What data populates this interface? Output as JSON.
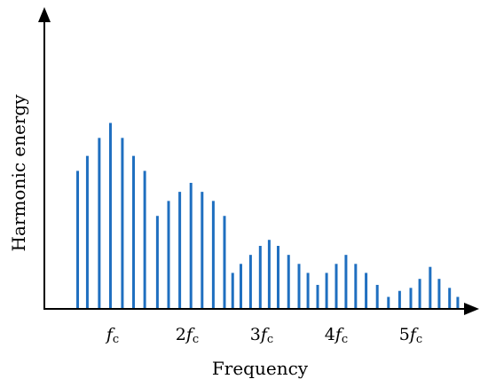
{
  "chart_data": {
    "type": "bar",
    "title": "",
    "xlabel": "Frequency",
    "ylabel": "Harmonic energy",
    "grid": false,
    "legend": "none",
    "xlim": [
      0,
      5.7
    ],
    "ylim": [
      0,
      1.0
    ],
    "x_ticks": [
      {
        "value": 1,
        "coef": "",
        "label": "f",
        "sub": "c"
      },
      {
        "value": 2,
        "coef": "2",
        "label": "f",
        "sub": "c"
      },
      {
        "value": 3,
        "coef": "3",
        "label": "f",
        "sub": "c"
      },
      {
        "value": 4,
        "coef": "4",
        "label": "f",
        "sub": "c"
      },
      {
        "value": 5,
        "coef": "5",
        "label": "f",
        "sub": "c"
      }
    ],
    "bar_color": "#1f6fc0",
    "axis_color": "#000000",
    "series": [
      {
        "x": [
          0.53,
          0.66,
          0.82,
          0.97,
          1.13,
          1.28,
          1.43,
          1.6,
          1.75,
          1.9,
          2.05,
          2.2,
          2.35,
          2.5,
          2.61,
          2.72,
          2.85,
          2.98,
          3.1,
          3.22,
          3.36,
          3.5,
          3.62,
          3.75,
          3.87,
          4.0,
          4.13,
          4.26,
          4.4,
          4.55,
          4.7,
          4.85,
          5.0,
          5.12,
          5.26,
          5.38,
          5.52,
          5.63
        ],
        "values": [
          0.46,
          0.51,
          0.57,
          0.62,
          0.57,
          0.51,
          0.46,
          0.31,
          0.36,
          0.39,
          0.42,
          0.39,
          0.36,
          0.31,
          0.12,
          0.15,
          0.18,
          0.21,
          0.23,
          0.21,
          0.18,
          0.15,
          0.12,
          0.08,
          0.12,
          0.15,
          0.18,
          0.15,
          0.12,
          0.08,
          0.04,
          0.06,
          0.07,
          0.1,
          0.14,
          0.1,
          0.07,
          0.04
        ]
      }
    ]
  }
}
